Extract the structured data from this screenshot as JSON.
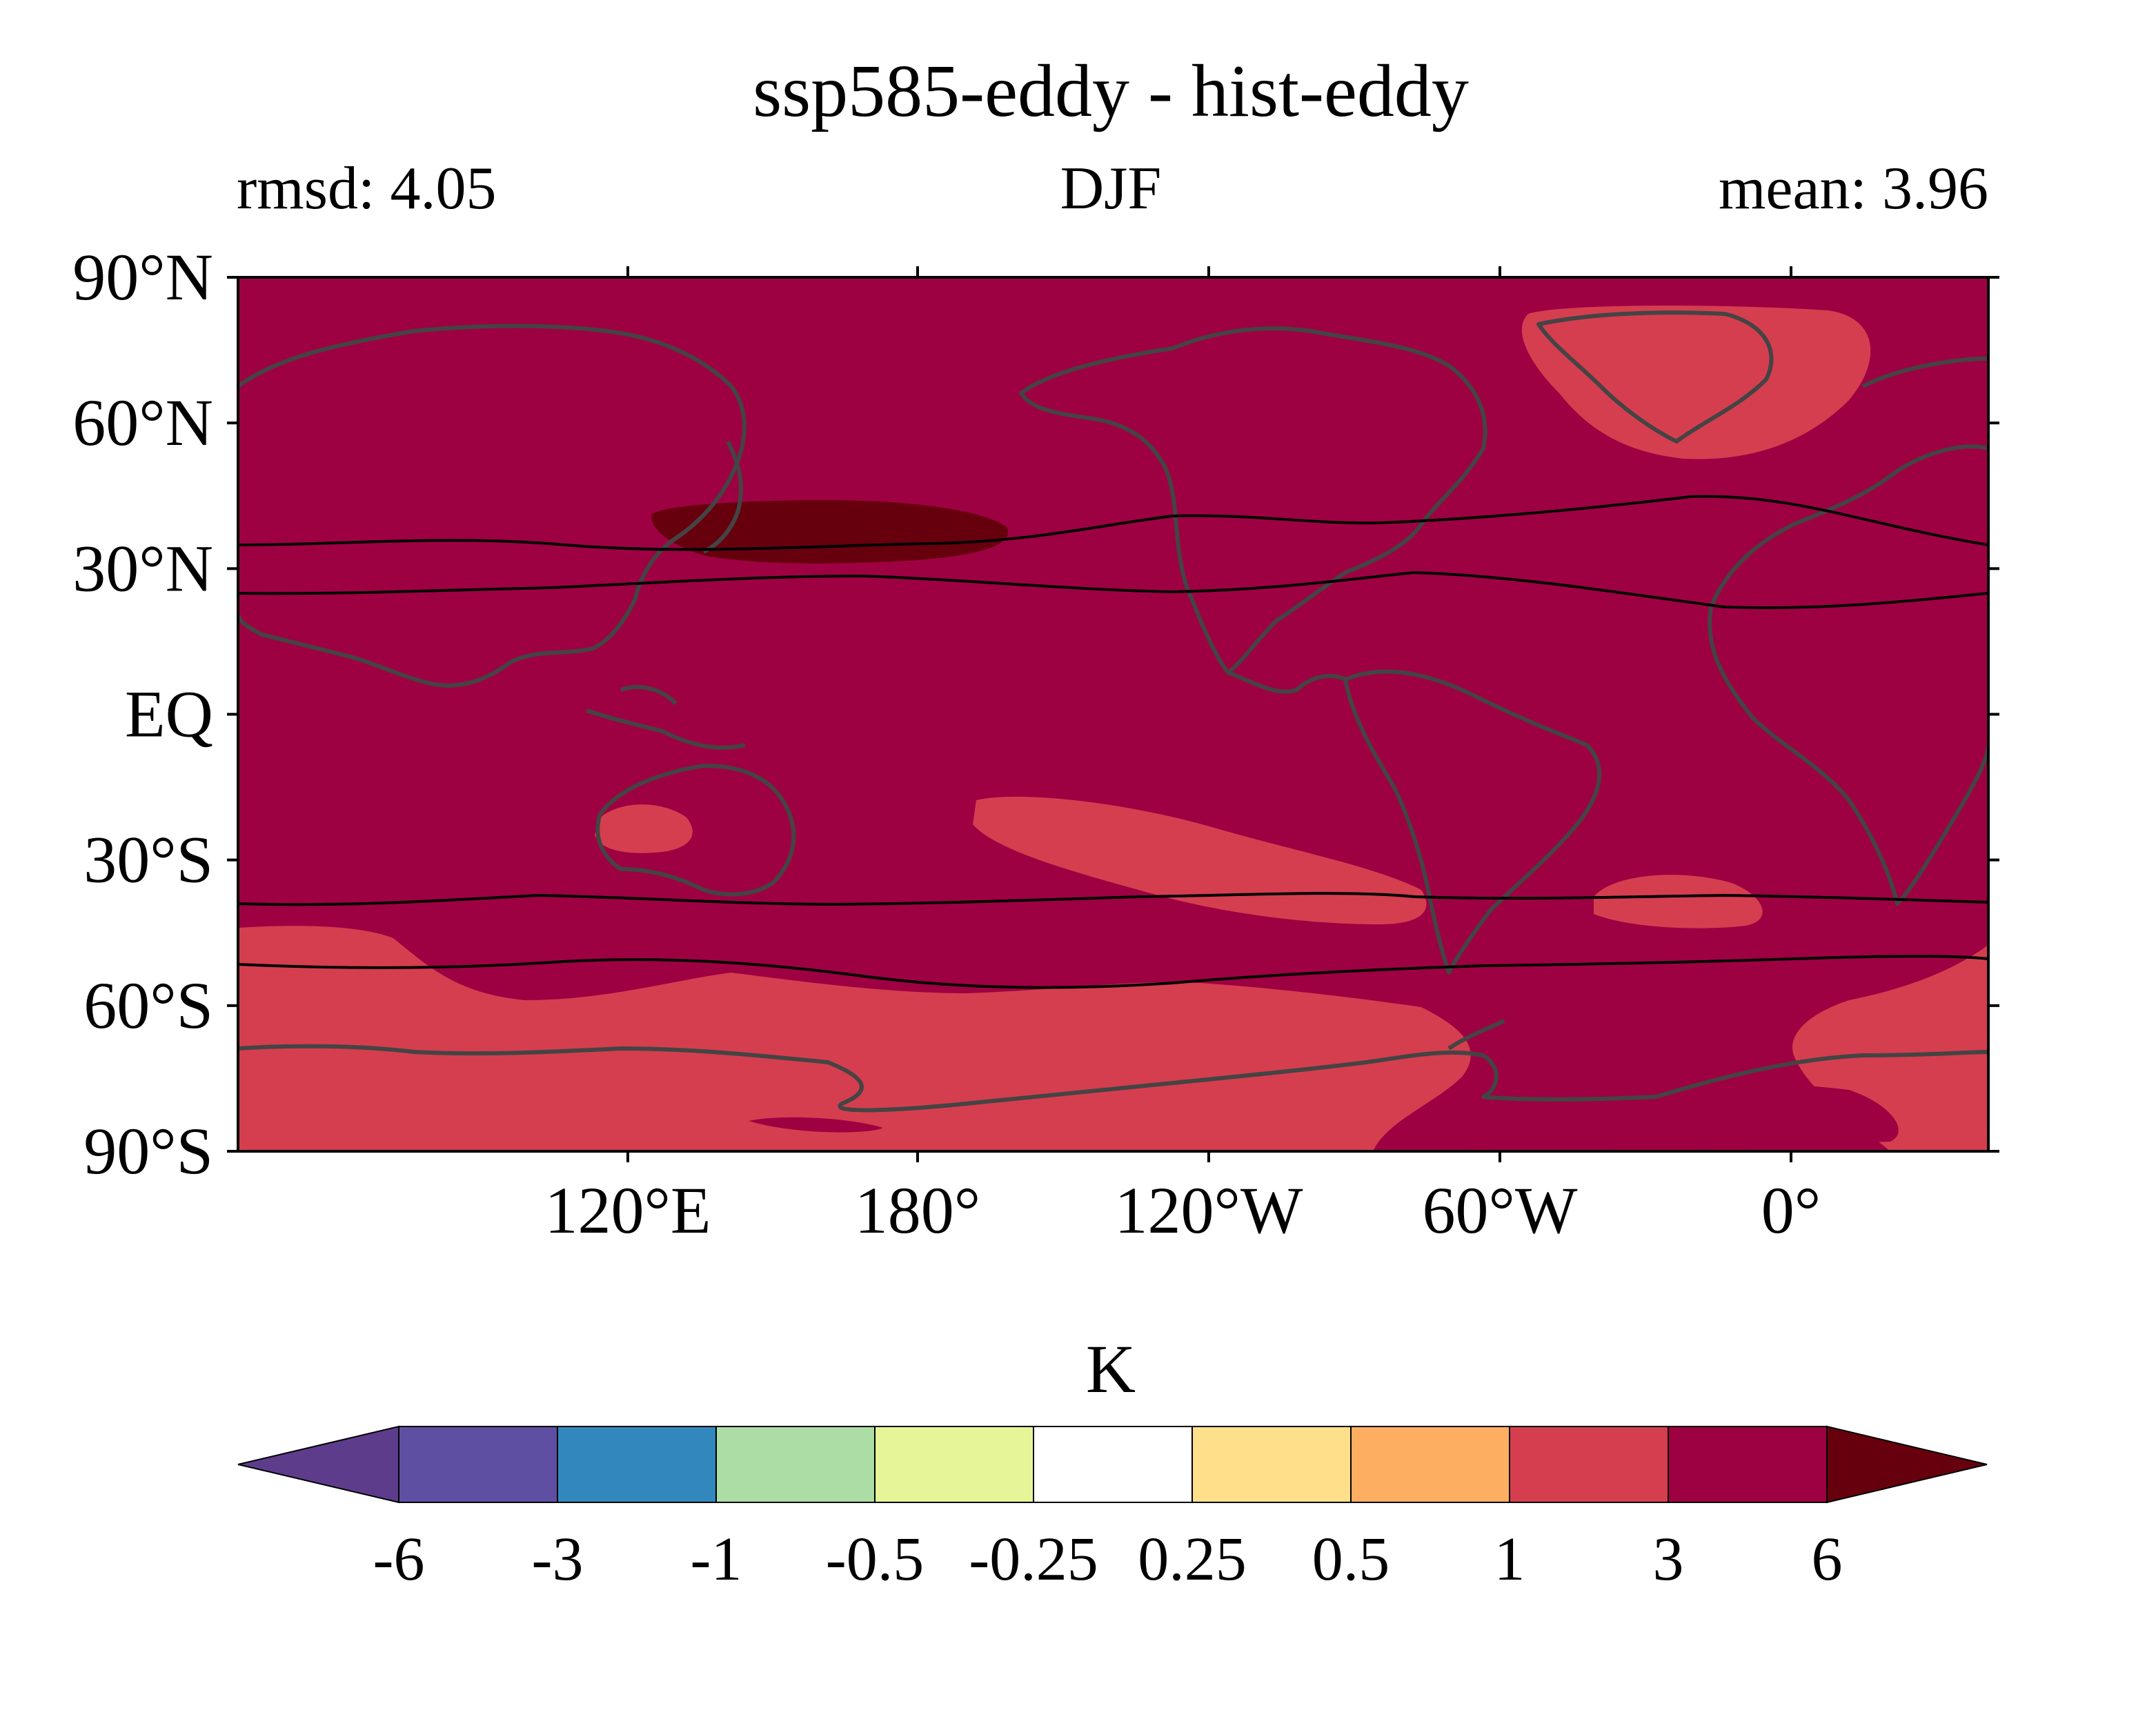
{
  "title": "ssp585-eddy - hist-eddy",
  "subtitle_left": "rmsd: 4.05",
  "subtitle_center": "DJF",
  "subtitle_right": "mean: 3.96",
  "colorbar": {
    "unit": "K",
    "levels": [
      "-6",
      "-3",
      "-1",
      "-0.5",
      "-0.25",
      "0.25",
      "0.5",
      "1",
      "3",
      "6"
    ],
    "colors": {
      "under": "#5e3c8c",
      "bins": [
        "#5e4fa2",
        "#3288bd",
        "#abdda4",
        "#e6f598",
        "#ffffff",
        "#fee08b",
        "#fdae61",
        "#d53e4f",
        "#9e0142"
      ],
      "over": "#67000d"
    }
  },
  "map": {
    "y_tick_labels": [
      "90°N",
      "60°N",
      "30°N",
      "EQ",
      "30°S",
      "60°S",
      "90°S"
    ],
    "x_tick_labels": [
      "120°E",
      "180°",
      "120°W",
      "60°W",
      "0°"
    ],
    "background_color": "#9e0142",
    "fill_colors": {
      "bin_1_3": "#d53e4f",
      "bin_3_6": "#9e0142",
      "over_6": "#67000d"
    },
    "coastline_color": "#444444",
    "jet_line_color": "#000000"
  }
}
